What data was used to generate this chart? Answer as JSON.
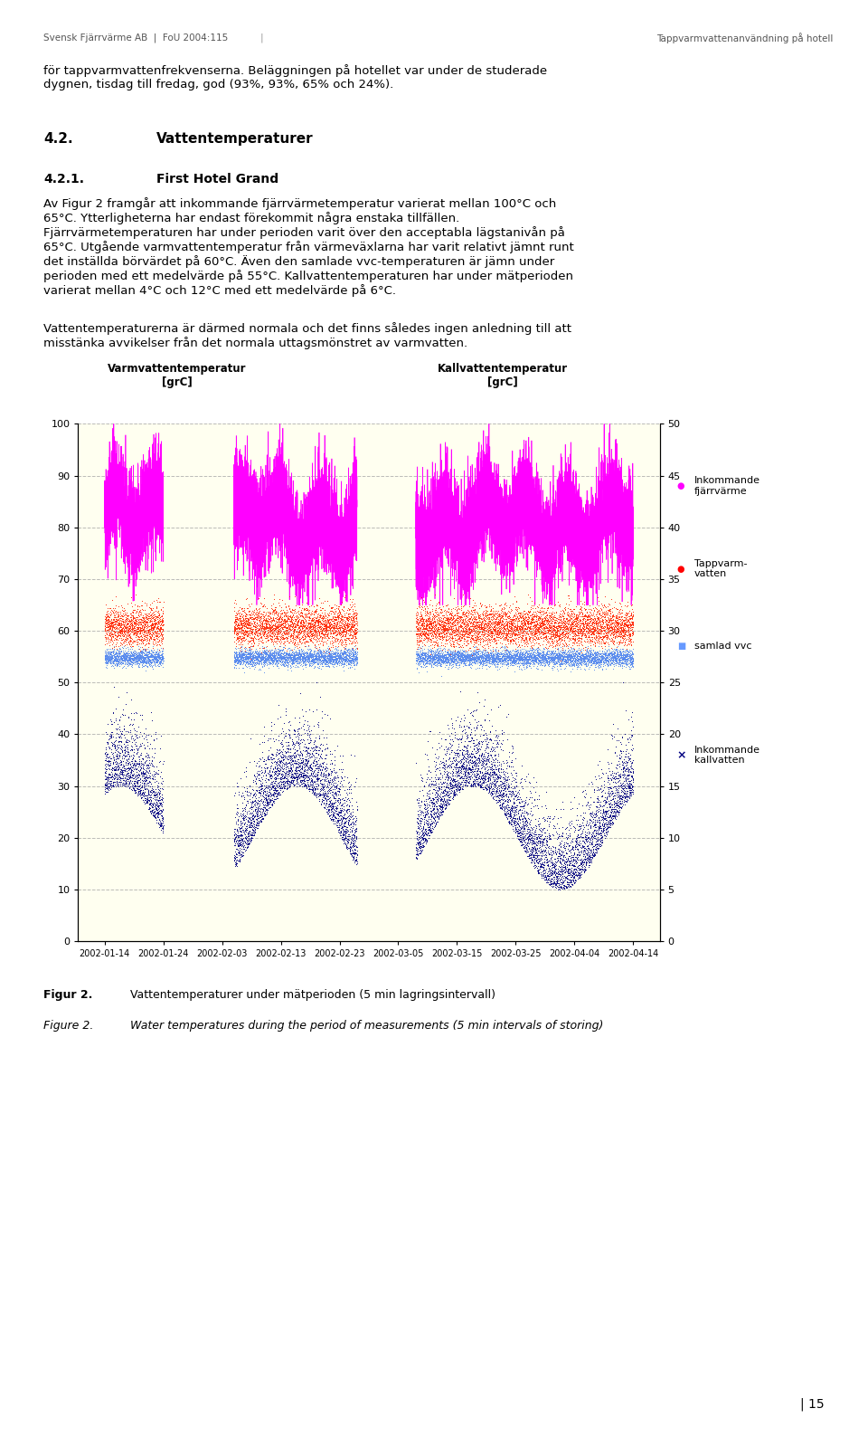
{
  "title_left": "Varmvattentemperatur\n[grC]",
  "title_right": "Kallvattentemperatur\n[grC]",
  "ylim_left": [
    0,
    100
  ],
  "ylim_right": [
    0,
    50
  ],
  "yticks_left": [
    0,
    10,
    20,
    30,
    40,
    50,
    60,
    70,
    80,
    90,
    100
  ],
  "yticks_right": [
    0,
    5,
    10,
    15,
    20,
    25,
    30,
    35,
    40,
    45,
    50
  ],
  "xticklabels": [
    "2002-01-14",
    "2002-01-24",
    "2002-02-03",
    "2002-02-13",
    "2002-02-23",
    "2002-03-05",
    "2002-03-15",
    "2002-03-25",
    "2002-04-04",
    "2002-04-14"
  ],
  "background_color": "#FFFFF0",
  "fig_background": "#FFFFFF",
  "n_points": 12000,
  "random_seed": 42,
  "header_left": "Svensk Fjärrvärme AB  |  FoU 2004:115",
  "header_right": "Tappvarmvattenanvändning på hotell",
  "para1": "för tappvarmvattenfrekvenserna. Beläggningen på hotellet var under de studerade\ndygnen, tisdag till fredag, god (93%, 93%, 65% och 24%).",
  "heading1": "4.2.",
  "heading1_text": "Vattentemperaturer",
  "heading2": "4.2.1.",
  "heading2_text": "First Hotel Grand",
  "body_text": "Av Figur 2 framgår att inkommande fjärrvärmetemperatur varierat mellan 100°C och\n65°C. Ytterligheterna har endast förekommit några enstaka tillfällen.\nFjärrvärmetemperaturen har under perioden varit över den acceptabla lägstanivån på\n65°C. Utgående varmvattentemperatur från värmeväxlarna har varit relativt jämnt runt\ndet inställda börvärdet på 60°C. Även den samlade vvc-temperaturen är jämn under\nperioden med ett medelvärde på 55°C. Kallvattentemperaturen har under mätperioden\nvarierat mellan 4°C och 12°C med ett medelvärde på 6°C.",
  "para_last": "Vattentemperaturerna är därmed normala och det finns således ingen anledning till att\nmisstänka avvikelser från det normala uttagsmönstret av varmvatten.",
  "caption1_label": "Figur 2.",
  "caption1_text": "Vattentemperaturer under mätperioden (5 min lagringsintervall)",
  "caption2_label": "Figure 2.",
  "caption2_text": "Water temperatures during the period of measurements (5 min intervals of storing)",
  "page_number": "| 15",
  "legend_items": [
    {
      "label": "Inkommande\nfjärrvärme",
      "color": "#FF00FF",
      "marker": "o"
    },
    {
      "label": "Tappvarm-\nvatten",
      "color": "#FF0000",
      "marker": "o"
    },
    {
      "label": "samlad vvc",
      "color": "#6699FF",
      "marker": "s"
    },
    {
      "label": "Inkommande\nkallvatten",
      "color": "#000080",
      "marker": "x"
    }
  ]
}
